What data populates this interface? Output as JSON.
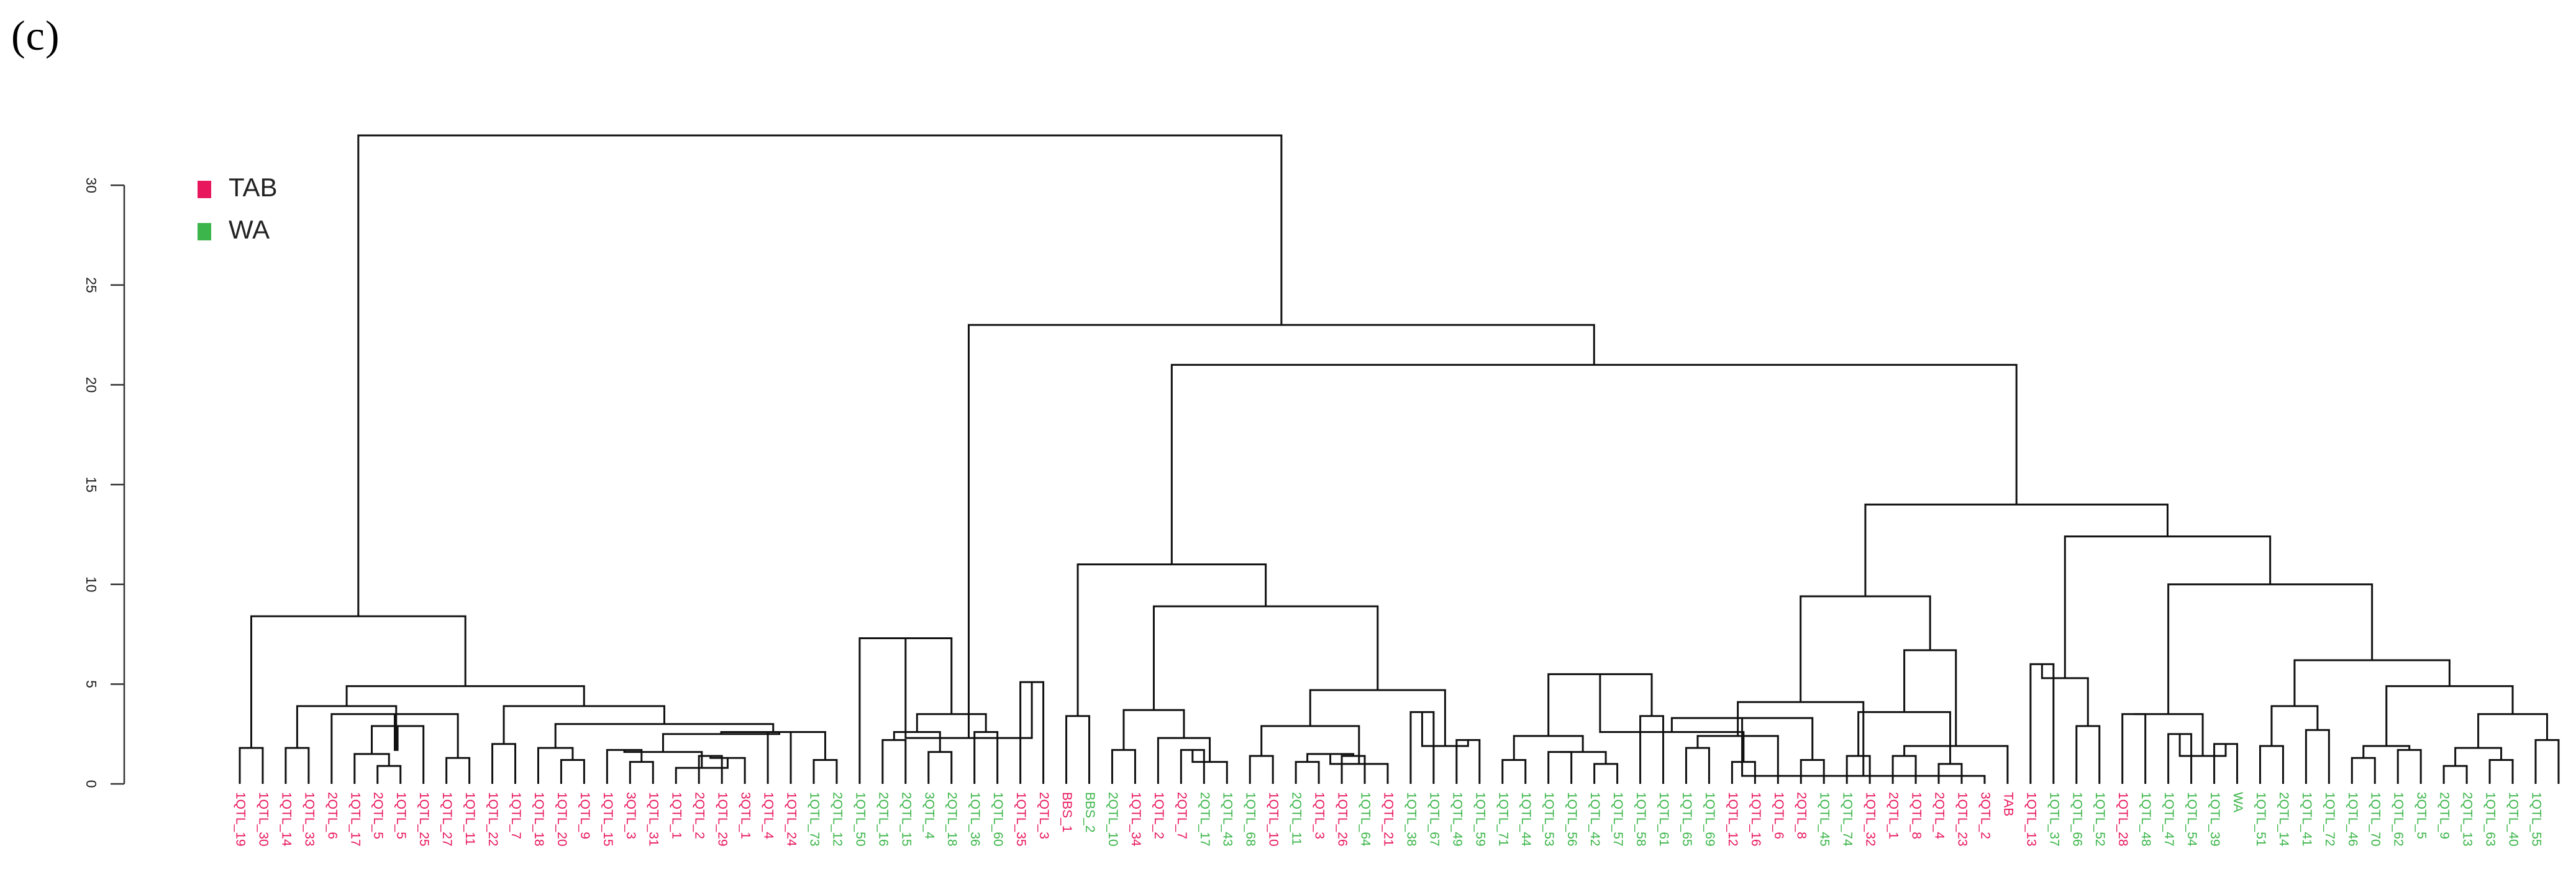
{
  "panel_label": "(c)",
  "colors": {
    "TAB": "#e8175d",
    "WA": "#3cb54a",
    "links": "#111111",
    "axis": "#333333"
  },
  "chart_data": {
    "type": "dendrogram",
    "title": "",
    "xlabel": "",
    "ylabel": "",
    "ylim": [
      0,
      32.5
    ],
    "yticks": [
      0,
      5,
      10,
      15,
      20,
      25,
      30
    ],
    "legend": {
      "placement": "top-left",
      "entries": [
        {
          "label": "TAB",
          "color": "#e8175d"
        },
        {
          "label": "WA",
          "color": "#3cb54a"
        }
      ]
    },
    "leaves": [
      {
        "label": "1QTL_19",
        "group": "TAB"
      },
      {
        "label": "1QTL_30",
        "group": "TAB"
      },
      {
        "label": "1QTL_14",
        "group": "TAB"
      },
      {
        "label": "1QTL_33",
        "group": "TAB"
      },
      {
        "label": "2QTL_6",
        "group": "TAB"
      },
      {
        "label": "1QTL_17",
        "group": "TAB"
      },
      {
        "label": "2QTL_5",
        "group": "TAB"
      },
      {
        "label": "1QTL_5",
        "group": "TAB"
      },
      {
        "label": "1QTL_25",
        "group": "TAB"
      },
      {
        "label": "1QTL_27",
        "group": "TAB"
      },
      {
        "label": "1QTL_11",
        "group": "TAB"
      },
      {
        "label": "1QTL_22",
        "group": "TAB"
      },
      {
        "label": "1QTL_7",
        "group": "TAB"
      },
      {
        "label": "1QTL_18",
        "group": "TAB"
      },
      {
        "label": "1QTL_20",
        "group": "TAB"
      },
      {
        "label": "1QTL_9",
        "group": "TAB"
      },
      {
        "label": "1QTL_15",
        "group": "TAB"
      },
      {
        "label": "3QTL_3",
        "group": "TAB"
      },
      {
        "label": "1QTL_31",
        "group": "TAB"
      },
      {
        "label": "1QTL_1",
        "group": "TAB"
      },
      {
        "label": "2QTL_2",
        "group": "TAB"
      },
      {
        "label": "1QTL_29",
        "group": "TAB"
      },
      {
        "label": "3QTL_1",
        "group": "TAB"
      },
      {
        "label": "1QTL_4",
        "group": "TAB"
      },
      {
        "label": "1QTL_24",
        "group": "TAB"
      },
      {
        "label": "1QTL_73",
        "group": "WA"
      },
      {
        "label": "2QTL_12",
        "group": "WA"
      },
      {
        "label": "1QTL_50",
        "group": "WA"
      },
      {
        "label": "2QTL_16",
        "group": "WA"
      },
      {
        "label": "2QTL_15",
        "group": "WA"
      },
      {
        "label": "3QTL_4",
        "group": "WA"
      },
      {
        "label": "2QTL_18",
        "group": "WA"
      },
      {
        "label": "1QTL_36",
        "group": "WA"
      },
      {
        "label": "1QTL_60",
        "group": "WA"
      },
      {
        "label": "1QTL_35",
        "group": "TAB"
      },
      {
        "label": "2QTL_3",
        "group": "TAB"
      },
      {
        "label": "BBS_1",
        "group": "TAB"
      },
      {
        "label": "BBS_2",
        "group": "WA"
      },
      {
        "label": "2QTL_10",
        "group": "WA"
      },
      {
        "label": "1QTL_34",
        "group": "TAB"
      },
      {
        "label": "1QTL_2",
        "group": "TAB"
      },
      {
        "label": "2QTL_7",
        "group": "TAB"
      },
      {
        "label": "2QTL_17",
        "group": "WA"
      },
      {
        "label": "1QTL_43",
        "group": "WA"
      },
      {
        "label": "1QTL_68",
        "group": "WA"
      },
      {
        "label": "1QTL_10",
        "group": "TAB"
      },
      {
        "label": "2QTL_11",
        "group": "WA"
      },
      {
        "label": "1QTL_3",
        "group": "TAB"
      },
      {
        "label": "1QTL_26",
        "group": "TAB"
      },
      {
        "label": "1QTL_64",
        "group": "WA"
      },
      {
        "label": "1QTL_21",
        "group": "TAB"
      },
      {
        "label": "1QTL_38",
        "group": "WA"
      },
      {
        "label": "1QTL_67",
        "group": "WA"
      },
      {
        "label": "1QTL_49",
        "group": "WA"
      },
      {
        "label": "1QTL_59",
        "group": "WA"
      },
      {
        "label": "1QTL_71",
        "group": "WA"
      },
      {
        "label": "1QTL_44",
        "group": "WA"
      },
      {
        "label": "1QTL_53",
        "group": "WA"
      },
      {
        "label": "1QTL_56",
        "group": "WA"
      },
      {
        "label": "1QTL_42",
        "group": "WA"
      },
      {
        "label": "1QTL_57",
        "group": "WA"
      },
      {
        "label": "1QTL_58",
        "group": "WA"
      },
      {
        "label": "1QTL_61",
        "group": "WA"
      },
      {
        "label": "1QTL_65",
        "group": "WA"
      },
      {
        "label": "1QTL_69",
        "group": "WA"
      },
      {
        "label": "1QTL_12",
        "group": "TAB"
      },
      {
        "label": "1QTL_16",
        "group": "TAB"
      },
      {
        "label": "1QTL_6",
        "group": "TAB"
      },
      {
        "label": "2QTL_8",
        "group": "TAB"
      },
      {
        "label": "1QTL_45",
        "group": "WA"
      },
      {
        "label": "1QTL_74",
        "group": "WA"
      },
      {
        "label": "1QTL_32",
        "group": "TAB"
      },
      {
        "label": "2QTL_1",
        "group": "TAB"
      },
      {
        "label": "1QTL_8",
        "group": "TAB"
      },
      {
        "label": "2QTL_4",
        "group": "TAB"
      },
      {
        "label": "1QTL_23",
        "group": "TAB"
      },
      {
        "label": "3QTL_2",
        "group": "TAB"
      },
      {
        "label": "TAB",
        "group": "TAB"
      },
      {
        "label": "1QTL_13",
        "group": "TAB"
      },
      {
        "label": "1QTL_37",
        "group": "WA"
      },
      {
        "label": "1QTL_66",
        "group": "WA"
      },
      {
        "label": "1QTL_52",
        "group": "WA"
      },
      {
        "label": "1QTL_28",
        "group": "TAB"
      },
      {
        "label": "1QTL_48",
        "group": "WA"
      },
      {
        "label": "1QTL_47",
        "group": "WA"
      },
      {
        "label": "1QTL_54",
        "group": "WA"
      },
      {
        "label": "1QTL_39",
        "group": "WA"
      },
      {
        "label": "WA",
        "group": "WA"
      },
      {
        "label": "1QTL_51",
        "group": "WA"
      },
      {
        "label": "2QTL_14",
        "group": "WA"
      },
      {
        "label": "1QTL_41",
        "group": "WA"
      },
      {
        "label": "1QTL_72",
        "group": "WA"
      },
      {
        "label": "1QTL_46",
        "group": "WA"
      },
      {
        "label": "1QTL_70",
        "group": "WA"
      },
      {
        "label": "1QTL_62",
        "group": "WA"
      },
      {
        "label": "3QTL_5",
        "group": "WA"
      },
      {
        "label": "2QTL_9",
        "group": "WA"
      },
      {
        "label": "2QTL_13",
        "group": "WA"
      },
      {
        "label": "1QTL_63",
        "group": "WA"
      },
      {
        "label": "1QTL_40",
        "group": "WA"
      },
      {
        "label": "1QTL_55",
        "group": "WA"
      }
    ],
    "merges": [
      [
        0,
        1,
        1.8
      ],
      [
        2,
        3,
        1.8
      ],
      [
        6,
        7,
        0.9
      ],
      [
        5,
        "m2",
        1.5
      ],
      [
        "m3",
        8,
        2.9
      ],
      [
        9,
        10,
        1.3
      ],
      [
        4,
        "m5",
        3.5
      ],
      [
        "m4",
        "m6",
        1.7
      ],
      [
        "m7",
        "m1",
        3.9
      ],
      [
        11,
        12,
        2.0
      ],
      [
        14,
        15,
        1.2
      ],
      [
        13,
        "m10",
        1.8
      ],
      [
        17,
        18,
        1.1
      ],
      [
        16,
        "m12",
        1.7
      ],
      [
        20,
        21,
        1.4
      ],
      [
        "m14",
        22,
        1.3
      ],
      [
        19,
        "m15",
        0.8
      ],
      [
        "m13",
        "m16",
        1.6
      ],
      [
        23,
        24,
        2.6
      ],
      [
        "m17",
        "m18",
        2.5
      ],
      [
        25,
        26,
        1.2
      ],
      [
        "m19",
        "m20",
        2.6
      ],
      [
        "m11",
        "m21",
        3.0
      ],
      [
        "m22",
        "m9",
        3.9
      ],
      [
        "m23",
        "m8",
        4.9
      ],
      [
        "m24",
        "m0",
        8.4
      ],
      [
        28,
        29,
        2.2
      ],
      [
        30,
        31,
        1.6
      ],
      [
        "m26",
        "m27",
        2.6
      ],
      [
        32,
        33,
        2.6
      ],
      [
        "m28",
        "m29",
        3.5
      ],
      [
        "m30",
        27,
        7.3
      ],
      [
        34,
        35,
        5.1
      ],
      [
        "m31",
        "m32",
        2.3
      ],
      [
        36,
        37,
        3.4
      ],
      [
        38,
        39,
        1.7
      ],
      [
        41,
        42,
        1.7
      ],
      [
        "m36",
        43,
        1.1
      ],
      [
        40,
        "m37",
        2.3
      ],
      [
        "m35",
        "m38",
        3.7
      ],
      [
        44,
        45,
        1.4
      ],
      [
        46,
        47,
        1.1
      ],
      [
        48,
        49,
        1.4
      ],
      [
        "m42",
        "m41",
        1.5
      ],
      [
        "m43",
        50,
        1.0
      ],
      [
        "m44",
        "m40",
        2.9
      ],
      [
        51,
        52,
        3.6
      ],
      [
        53,
        54,
        2.2
      ],
      [
        "m46",
        "m47",
        1.9
      ],
      [
        "m48",
        "m45",
        4.7
      ],
      [
        "m39",
        "m49",
        8.9
      ],
      [
        "m50",
        "m34",
        11.0
      ],
      [
        55,
        56,
        1.2
      ],
      [
        57,
        58,
        1.6
      ],
      [
        59,
        60,
        1.0
      ],
      [
        "m53",
        "m54",
        1.6
      ],
      [
        "m52",
        "m55",
        2.4
      ],
      [
        61,
        62,
        3.4
      ],
      [
        "m56",
        "m57",
        5.5
      ],
      [
        63,
        64,
        1.8
      ],
      [
        65,
        66,
        1.1
      ],
      [
        "m59",
        67,
        2.4
      ],
      [
        "m60",
        "m58",
        2.6
      ],
      [
        68,
        69,
        1.2
      ],
      [
        70,
        71,
        1.4
      ],
      [
        "m62",
        "m63",
        3.3
      ],
      [
        72,
        73,
        1.4
      ],
      [
        74,
        75,
        1.0
      ],
      [
        "m65",
        76,
        0.4
      ],
      [
        "m66",
        77,
        1.9
      ],
      [
        "m64",
        "m67",
        3.6
      ],
      [
        "m61",
        "m68",
        4.1
      ],
      [
        "m69",
        "m70",
        6.7
      ],
      [
        "m71",
        "m72",
        9.4
      ],
      [
        78,
        79,
        6.0
      ],
      [
        80,
        81,
        2.9
      ],
      [
        "m74",
        "m75",
        5.3
      ],
      [
        82,
        83,
        3.5
      ],
      [
        84,
        85,
        2.5
      ],
      [
        86,
        87,
        2.0
      ],
      [
        "m78",
        "m79",
        1.4
      ],
      [
        "m77",
        "m80",
        3.5
      ],
      [
        88,
        89,
        1.9
      ],
      [
        90,
        91,
        2.7
      ],
      [
        "m82",
        "m83",
        3.9
      ],
      [
        92,
        93,
        1.3
      ],
      [
        94,
        95,
        1.7
      ],
      [
        "m85",
        "m86",
        1.9
      ],
      [
        96,
        97,
        0.9
      ],
      [
        98,
        99,
        1.2
      ],
      [
        "m88",
        "m89",
        1.8
      ],
      [
        100,
        101,
        2.2
      ],
      [
        "m90",
        "m91",
        3.5
      ],
      [
        "m87",
        "m92",
        4.9
      ],
      [
        "m84",
        "m93",
        6.2
      ],
      [
        "m81",
        "m94",
        10.0
      ],
      [
        "m76",
        "m95",
        12.4
      ],
      [
        "m73",
        "m96",
        14.0
      ],
      [
        "m51",
        "m97",
        21.0
      ],
      [
        "m33",
        "m98",
        23.0
      ],
      [
        "m25",
        "m99",
        32.5
      ]
    ]
  }
}
